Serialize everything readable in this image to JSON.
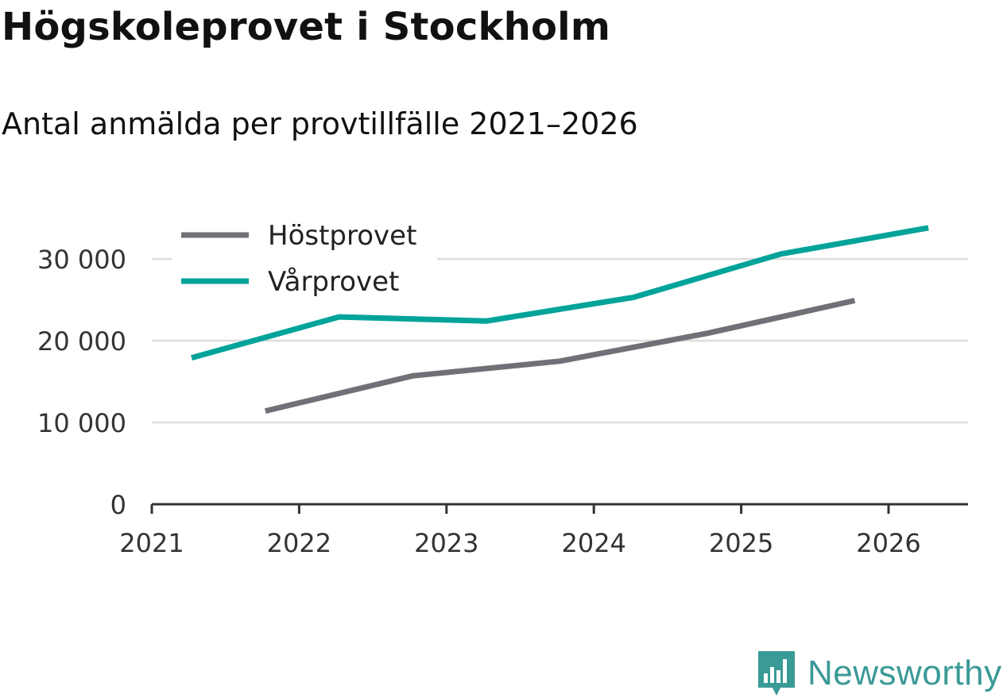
{
  "title": "Högskoleprovet i Stockholm",
  "subtitle": "Antal anmälda per provtillfälle 2021–2026",
  "brand": {
    "name": "Newsworthy",
    "icon": "bar-chart-speech-bubble-icon",
    "color": "#3a9a96"
  },
  "chart_data": {
    "type": "line",
    "title": "Högskoleprovet i Stockholm",
    "subtitle": "Antal anmälda per provtillfälle 2021–2026",
    "xlabel": "",
    "ylabel": "",
    "xlim": [
      2021,
      2026.55
    ],
    "ylim": [
      0,
      34000
    ],
    "x_ticks": [
      2021,
      2022,
      2023,
      2024,
      2025,
      2026
    ],
    "x_tick_labels": [
      "2021",
      "2022",
      "2023",
      "2024",
      "2025",
      "2026"
    ],
    "y_ticks": [
      0,
      10000,
      20000,
      30000
    ],
    "y_tick_labels": [
      "0",
      "10 000",
      "20 000",
      "30 000"
    ],
    "grid": true,
    "legend_position": "top-left",
    "series": [
      {
        "name": "Höstprovet",
        "color": "#717076",
        "x": [
          2021.77,
          2022.77,
          2023.77,
          2024.77,
          2025.77
        ],
        "values": [
          11400,
          15700,
          17500,
          20900,
          24900
        ]
      },
      {
        "name": "Vårprovet",
        "color": "#00a39a",
        "x": [
          2021.27,
          2022.27,
          2023.27,
          2024.27,
          2025.27,
          2026.27
        ],
        "values": [
          17900,
          22900,
          22400,
          25300,
          30600,
          33800
        ]
      }
    ]
  }
}
